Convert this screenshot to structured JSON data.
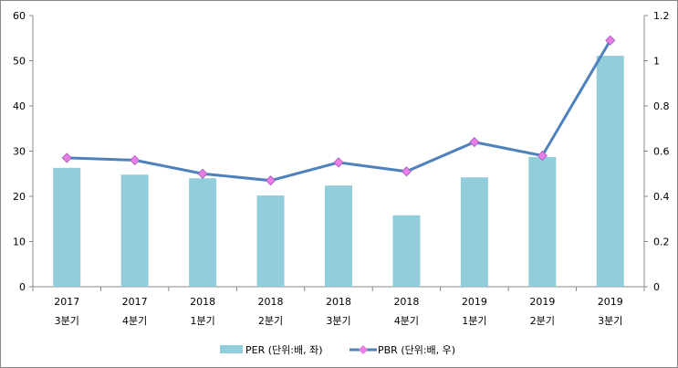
{
  "chart_data": {
    "type": "bar+line",
    "categories": [
      [
        "2017",
        "3분기"
      ],
      [
        "2017",
        "4분기"
      ],
      [
        "2018",
        "1분기"
      ],
      [
        "2018",
        "2분기"
      ],
      [
        "2018",
        "3분기"
      ],
      [
        "2018",
        "4분기"
      ],
      [
        "2019",
        "1분기"
      ],
      [
        "2019",
        "2분기"
      ],
      [
        "2019",
        "3분기"
      ]
    ],
    "series": [
      {
        "name": "PER (단위:배, 좌)",
        "type": "bar",
        "axis": "left",
        "color": "#92CDDC",
        "values": [
          26.3,
          24.8,
          24.0,
          20.2,
          22.4,
          15.8,
          24.2,
          28.7,
          51.1
        ]
      },
      {
        "name": "PBR (단위:배, 우)",
        "type": "line",
        "axis": "right",
        "color": "#4F81BD",
        "marker_color": "#E87EE8",
        "values": [
          0.57,
          0.56,
          0.5,
          0.47,
          0.55,
          0.51,
          0.64,
          0.58,
          1.09
        ]
      }
    ],
    "left_axis": {
      "ylim": [
        0,
        60
      ],
      "ticks": [
        "0",
        "10",
        "20",
        "30",
        "40",
        "50",
        "60"
      ]
    },
    "right_axis": {
      "ylim": [
        0,
        1.2
      ],
      "ticks": [
        "0",
        "0.2",
        "0.4",
        "0.6",
        "0.8",
        "1",
        "1.2"
      ]
    },
    "legend": "bottom"
  }
}
